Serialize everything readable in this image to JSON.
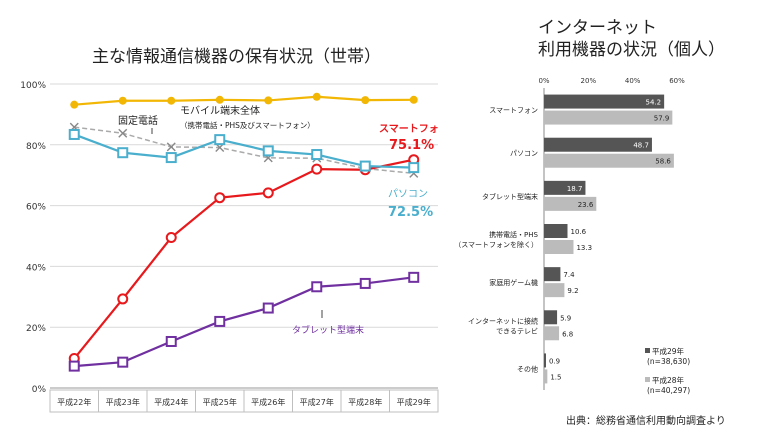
{
  "left_title": "主な情報通信機器の保有状況（世帯）",
  "right_title_line1": "インターネット",
  "right_title_line2": "利用機器の状況（個人）",
  "source": "出典：総務省通信利用動向調査より",
  "chart_data": [
    {
      "type": "line",
      "title": "主な情報通信機器の保有状況（世帯）",
      "categories": [
        "平成22年",
        "平成23年",
        "平成24年",
        "平成25年",
        "平成26年",
        "平成27年",
        "平成28年",
        "平成29年"
      ],
      "ylim": [
        0,
        100
      ],
      "y_ticks": [
        "0%",
        "20%",
        "40%",
        "60%",
        "80%",
        "100%"
      ],
      "grid": true,
      "series": [
        {
          "name": "固定電話",
          "color": "#aaaaaa",
          "values": [
            85.8,
            83.8,
            79.3,
            79.1,
            75.7,
            75.6,
            72.2,
            70.6
          ]
        },
        {
          "name": "モバイル端末全体",
          "note": "（携帯電話・PHS及びスマートフォン）",
          "color": "#f2b705",
          "values": [
            93.2,
            94.5,
            94.5,
            94.8,
            94.6,
            95.8,
            94.7,
            94.8
          ]
        },
        {
          "name": "スマートフォン",
          "value_label": "75.1%",
          "color": "#e8191c",
          "values": [
            9.7,
            29.3,
            49.5,
            62.6,
            64.2,
            72.0,
            71.8,
            75.1
          ]
        },
        {
          "name": "パソコン",
          "value_label": "72.5%",
          "color": "#4aaecd",
          "values": [
            83.4,
            77.4,
            75.8,
            81.7,
            78.0,
            76.8,
            73.0,
            72.5
          ]
        },
        {
          "name": "タブレット型端末",
          "color": "#7030a0",
          "values": [
            7.2,
            8.5,
            15.3,
            21.9,
            26.3,
            33.3,
            34.4,
            36.4
          ]
        }
      ]
    },
    {
      "type": "bar",
      "title": "インターネット利用機器の状況（個人）",
      "orientation": "horizontal",
      "xlim": [
        0,
        60
      ],
      "x_ticks": [
        "0%",
        "20%",
        "40%",
        "60%"
      ],
      "categories": [
        {
          "lines": [
            "スマートフォン"
          ]
        },
        {
          "lines": [
            "パソコン"
          ]
        },
        {
          "lines": [
            "タブレット型端末"
          ]
        },
        {
          "lines": [
            "携帯電話・PHS",
            "（スマートフォンを除く）"
          ]
        },
        {
          "lines": [
            "家庭用ゲーム機"
          ]
        },
        {
          "lines": [
            "インターネットに接続",
            "できるテレビ"
          ]
        },
        {
          "lines": [
            "その他"
          ]
        }
      ],
      "series": [
        {
          "name": "平成29年",
          "sample": "(n=38,630)",
          "color": "#555555",
          "values": [
            54.2,
            48.7,
            18.7,
            10.6,
            7.4,
            5.9,
            0.9
          ]
        },
        {
          "name": "平成28年",
          "sample": "(n=40,297)",
          "color": "#bbbbbb",
          "values": [
            57.9,
            58.6,
            23.6,
            13.3,
            9.2,
            6.8,
            1.5
          ]
        }
      ]
    }
  ]
}
